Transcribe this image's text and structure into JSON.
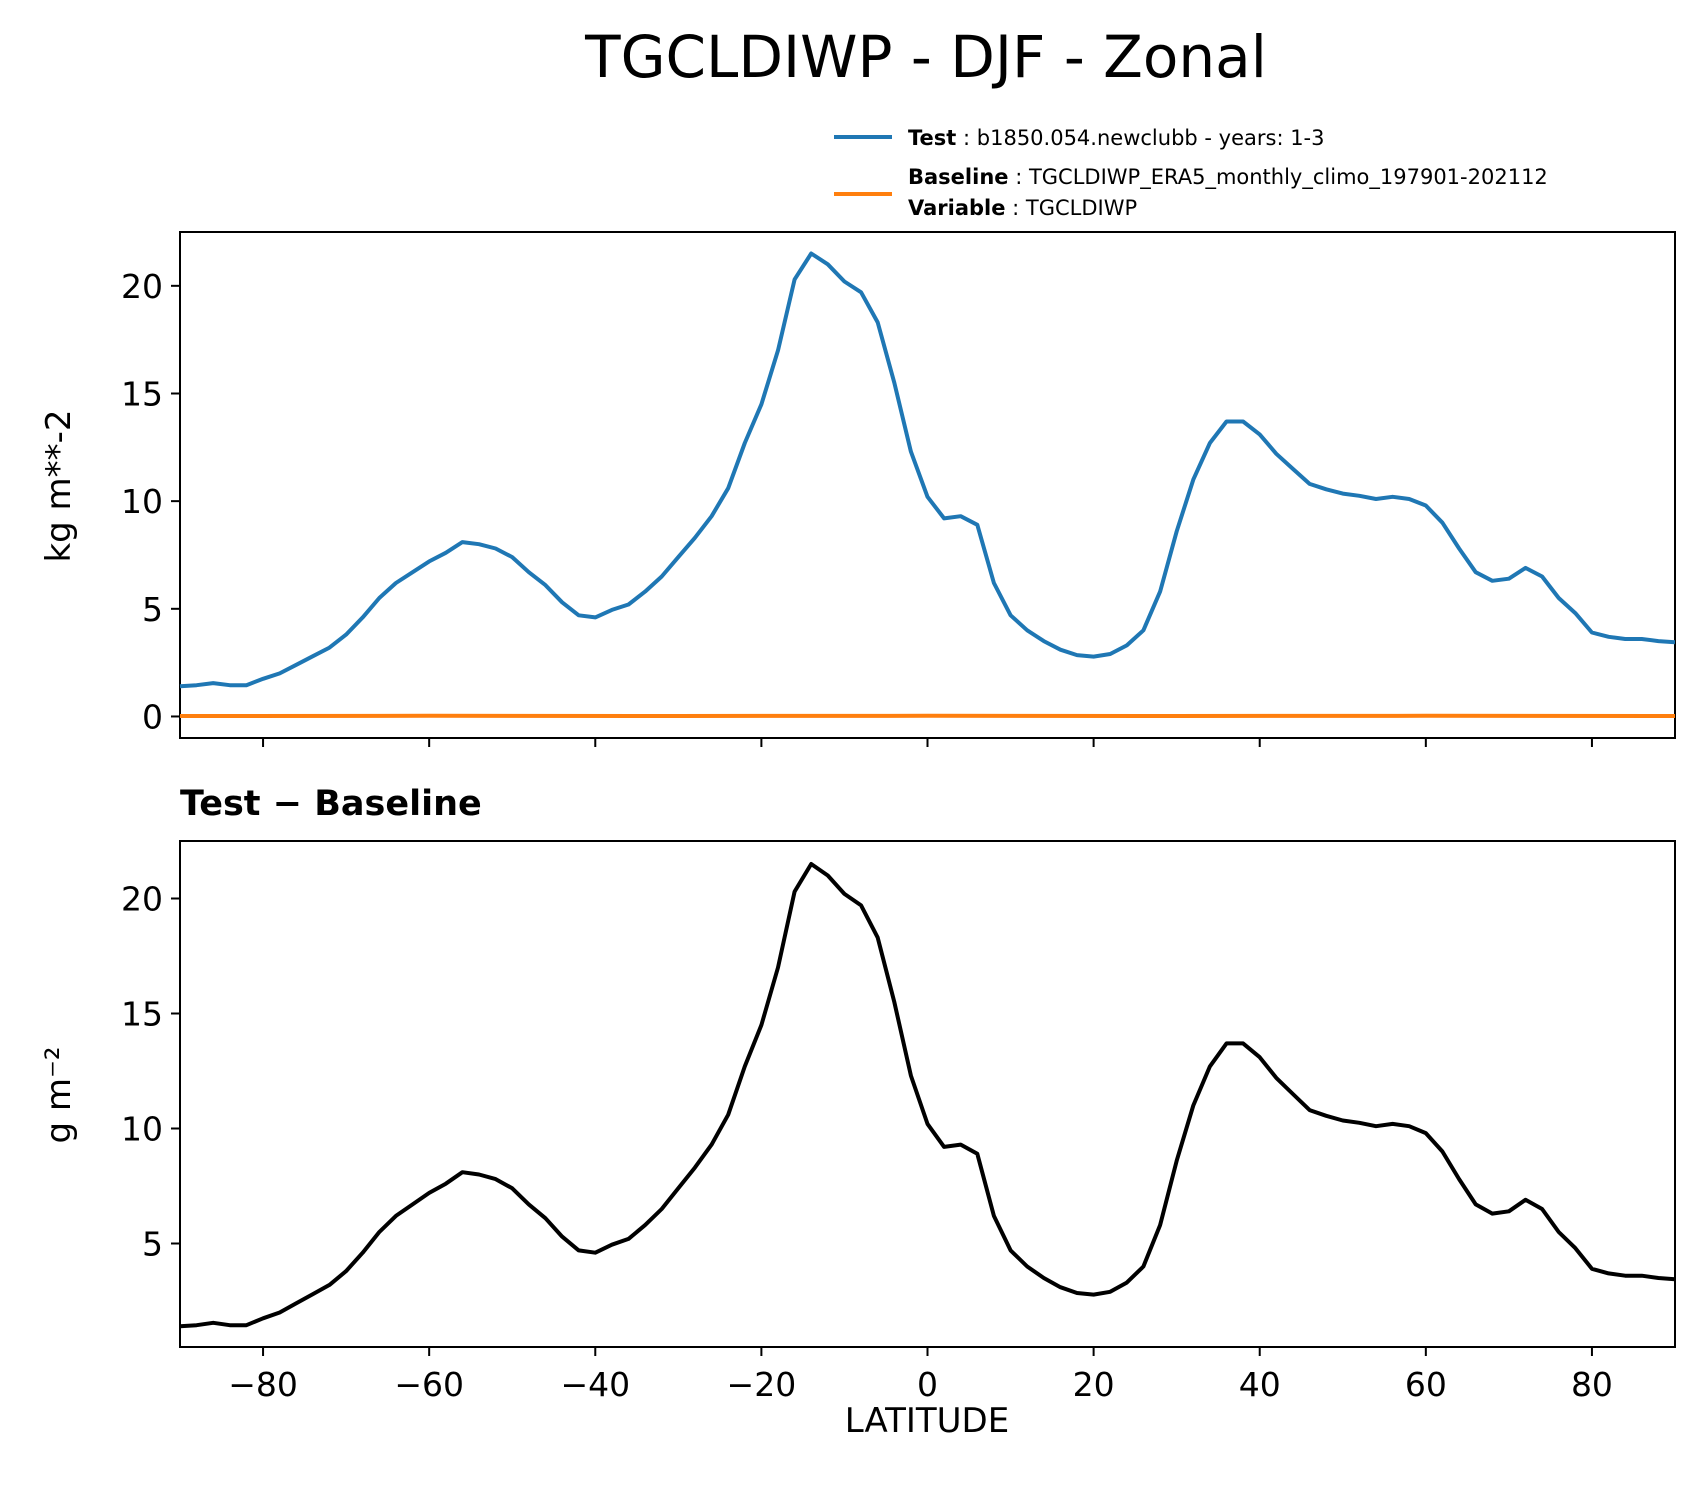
{
  "chart_data": [
    {
      "type": "line",
      "title": "TGCLDIWP - DJF - Zonal",
      "xlabel": "",
      "ylabel": "kg m**-2",
      "xlim": [
        -90,
        90
      ],
      "ylim": [
        -1,
        22.5
      ],
      "yticks": [
        0,
        5,
        10,
        15,
        20
      ],
      "ytick_labels": [
        "0",
        "5",
        "10",
        "15",
        "20"
      ],
      "xticks": [
        -80,
        -60,
        -40,
        -20,
        0,
        20,
        40,
        60,
        80
      ],
      "legend": {
        "placement": "top-right",
        "entries": [
          {
            "bold": "Test",
            "sep": " : ",
            "text": "b1850.054.newclubb - years: 1-3",
            "color": "#1f77b4"
          },
          {
            "bold": "Baseline",
            "sep": " : ",
            "text": "TGCLDIWP_ERA5_monthly_climo_197901-202112",
            "color": "#ff7f0e"
          },
          {
            "bold": "Variable",
            "sep": " : ",
            "text": "TGCLDIWP",
            "color": ""
          }
        ]
      },
      "series": [
        {
          "name": "Test",
          "color": "#1f77b4",
          "x": [
            -90,
            -88,
            -86,
            -84,
            -82,
            -80,
            -78,
            -76,
            -74,
            -72,
            -70,
            -68,
            -66,
            -64,
            -62,
            -60,
            -58,
            -56,
            -54,
            -52,
            -50,
            -48,
            -46,
            -44,
            -42,
            -40,
            -38,
            -36,
            -34,
            -32,
            -30,
            -28,
            -26,
            -24,
            -22,
            -20,
            -18,
            -16,
            -14,
            -12,
            -10,
            -8,
            -6,
            -4,
            -2,
            0,
            2,
            4,
            6,
            8,
            10,
            12,
            14,
            16,
            18,
            20,
            22,
            24,
            26,
            28,
            30,
            32,
            34,
            36,
            38,
            40,
            42,
            44,
            46,
            48,
            50,
            52,
            54,
            56,
            58,
            60,
            62,
            64,
            66,
            68,
            70,
            72,
            74,
            76,
            78,
            80,
            82,
            84,
            86,
            88,
            90
          ],
          "values": [
            1.4,
            1.45,
            1.55,
            1.45,
            1.45,
            1.75,
            2.0,
            2.4,
            2.8,
            3.2,
            3.8,
            4.6,
            5.5,
            6.2,
            6.7,
            7.2,
            7.6,
            8.1,
            8.0,
            7.8,
            7.4,
            6.7,
            6.1,
            5.3,
            4.7,
            4.6,
            4.95,
            5.2,
            5.8,
            6.5,
            7.4,
            8.3,
            9.3,
            10.6,
            12.7,
            14.5,
            17.0,
            20.3,
            21.5,
            21.0,
            20.2,
            19.7,
            18.3,
            15.5,
            12.3,
            10.2,
            9.2,
            9.3,
            8.9,
            6.2,
            4.7,
            4.0,
            3.5,
            3.1,
            2.85,
            2.78,
            2.9,
            3.3,
            4.0,
            5.8,
            8.6,
            11.0,
            12.7,
            13.7,
            13.7,
            13.1,
            12.2,
            11.5,
            10.8,
            10.55,
            10.35,
            10.25,
            10.1,
            10.2,
            10.1,
            9.8,
            9.0,
            7.8,
            6.7,
            6.3,
            6.4,
            6.9,
            6.5,
            5.5,
            4.8,
            3.9,
            3.7,
            3.6,
            3.6,
            3.5,
            3.45
          ]
        },
        {
          "name": "Baseline",
          "color": "#ff7f0e",
          "x": [
            -90,
            -60,
            -30,
            0,
            30,
            60,
            90
          ],
          "values": [
            0.02,
            0.03,
            0.02,
            0.03,
            0.02,
            0.03,
            0.02
          ]
        }
      ]
    },
    {
      "type": "line",
      "title": "Test − Baseline",
      "xlabel": "LATITUDE",
      "ylabel": "g m⁻²",
      "xlim": [
        -90,
        90
      ],
      "ylim": [
        0.5,
        22.5
      ],
      "yticks": [
        5,
        10,
        15,
        20
      ],
      "ytick_labels": [
        "5",
        "10",
        "15",
        "20"
      ],
      "xticks": [
        -80,
        -60,
        -40,
        -20,
        0,
        20,
        40,
        60,
        80
      ],
      "xtick_labels": [
        "−80",
        "−60",
        "−40",
        "−20",
        "0",
        "20",
        "40",
        "60",
        "80"
      ],
      "series": [
        {
          "name": "Test − Baseline",
          "color": "#000000",
          "x": [
            -90,
            -88,
            -86,
            -84,
            -82,
            -80,
            -78,
            -76,
            -74,
            -72,
            -70,
            -68,
            -66,
            -64,
            -62,
            -60,
            -58,
            -56,
            -54,
            -52,
            -50,
            -48,
            -46,
            -44,
            -42,
            -40,
            -38,
            -36,
            -34,
            -32,
            -30,
            -28,
            -26,
            -24,
            -22,
            -20,
            -18,
            -16,
            -14,
            -12,
            -10,
            -8,
            -6,
            -4,
            -2,
            0,
            2,
            4,
            6,
            8,
            10,
            12,
            14,
            16,
            18,
            20,
            22,
            24,
            26,
            28,
            30,
            32,
            34,
            36,
            38,
            40,
            42,
            44,
            46,
            48,
            50,
            52,
            54,
            56,
            58,
            60,
            62,
            64,
            66,
            68,
            70,
            72,
            74,
            76,
            78,
            80,
            82,
            84,
            86,
            88,
            90
          ],
          "values": [
            1.4,
            1.45,
            1.55,
            1.45,
            1.45,
            1.75,
            2.0,
            2.4,
            2.8,
            3.2,
            3.8,
            4.6,
            5.5,
            6.2,
            6.7,
            7.2,
            7.6,
            8.1,
            8.0,
            7.8,
            7.4,
            6.7,
            6.1,
            5.3,
            4.7,
            4.6,
            4.95,
            5.2,
            5.8,
            6.5,
            7.4,
            8.3,
            9.3,
            10.6,
            12.7,
            14.5,
            17.0,
            20.3,
            21.5,
            21.0,
            20.2,
            19.7,
            18.3,
            15.5,
            12.3,
            10.2,
            9.2,
            9.3,
            8.9,
            6.2,
            4.7,
            4.0,
            3.5,
            3.1,
            2.85,
            2.78,
            2.9,
            3.3,
            4.0,
            5.8,
            8.6,
            11.0,
            12.7,
            13.7,
            13.7,
            13.1,
            12.2,
            11.5,
            10.8,
            10.55,
            10.35,
            10.25,
            10.1,
            10.2,
            10.1,
            9.8,
            9.0,
            7.8,
            6.7,
            6.3,
            6.4,
            6.9,
            6.5,
            5.5,
            4.8,
            3.9,
            3.7,
            3.6,
            3.6,
            3.5,
            3.45
          ]
        }
      ]
    }
  ]
}
